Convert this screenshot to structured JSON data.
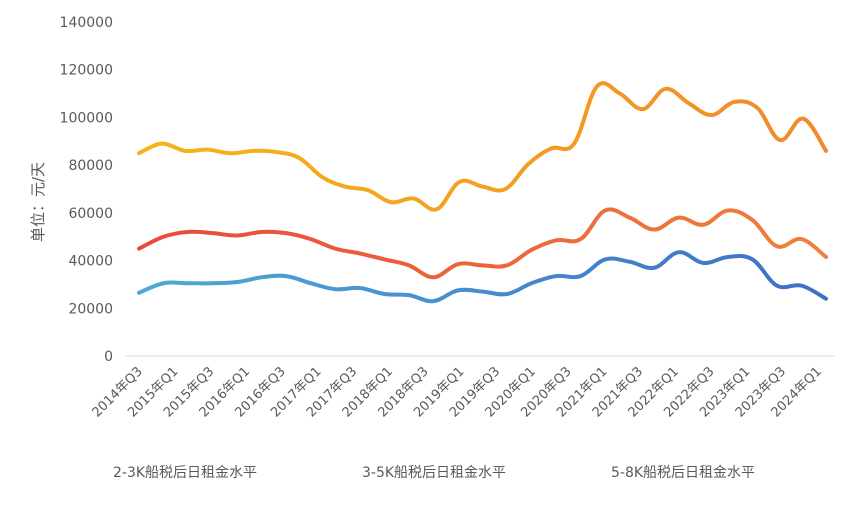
{
  "chart_data": {
    "type": "line",
    "title": "",
    "xlabel": "",
    "ylabel": "单位：元/天",
    "ylim": [
      0,
      140000
    ],
    "yticks": [
      0,
      20000,
      40000,
      60000,
      80000,
      100000,
      120000,
      140000
    ],
    "grid": false,
    "legend_position": "bottom",
    "x_tick_labels": [
      "2014年Q3",
      "2015年Q1",
      "2015年Q3",
      "2016年Q1",
      "2016年Q3",
      "2017年Q1",
      "2017年Q3",
      "2018年Q1",
      "2018年Q3",
      "2019年Q1",
      "2019年Q3",
      "2020年Q1",
      "2020年Q3",
      "2021年Q1",
      "2021年Q3",
      "2022年Q1",
      "2022年Q3",
      "2023年Q1",
      "2023年Q3",
      "2024年Q1"
    ],
    "series": [
      {
        "name": "2-3K船税后日租金水平",
        "color": "#4FA8D6",
        "color_end": "#3F6FC4",
        "values": [
          26500,
          30500,
          30500,
          30500,
          31000,
          33000,
          33500,
          30500,
          28000,
          28500,
          26000,
          25500,
          23000,
          27500,
          27000,
          26000,
          30500,
          33500,
          33500,
          40500,
          39500,
          37000,
          43500,
          39000,
          41500,
          40500,
          29500,
          29500,
          24000
        ]
      },
      {
        "name": "3-5K船税后日租金水平",
        "color": "#E9493C",
        "color_end": "#F0803A",
        "values": [
          45000,
          50000,
          52000,
          51500,
          50500,
          52000,
          51500,
          49000,
          45000,
          43000,
          40500,
          38000,
          33000,
          38500,
          38000,
          38000,
          44500,
          48500,
          49000,
          61000,
          58000,
          53000,
          58000,
          55000,
          61000,
          57000,
          46000,
          49000,
          41500
        ]
      },
      {
        "name": "5-8K船税后日租金水平",
        "color": "#F5B518",
        "color_end": "#F08A2A",
        "values": [
          85000,
          89000,
          86000,
          86500,
          85000,
          86000,
          85500,
          83000,
          75000,
          71000,
          69500,
          64500,
          66000,
          61500,
          73000,
          71000,
          70000,
          80500,
          87000,
          89000,
          113000,
          110000,
          103500,
          112000,
          106000,
          101000,
          106500,
          104000,
          90500,
          99500,
          86000
        ]
      }
    ]
  },
  "legend": {
    "items": [
      {
        "label": "2-3K船税后日租金水平"
      },
      {
        "label": "3-5K船税后日租金水平"
      },
      {
        "label": "5-8K船税后日租金水平"
      }
    ]
  }
}
